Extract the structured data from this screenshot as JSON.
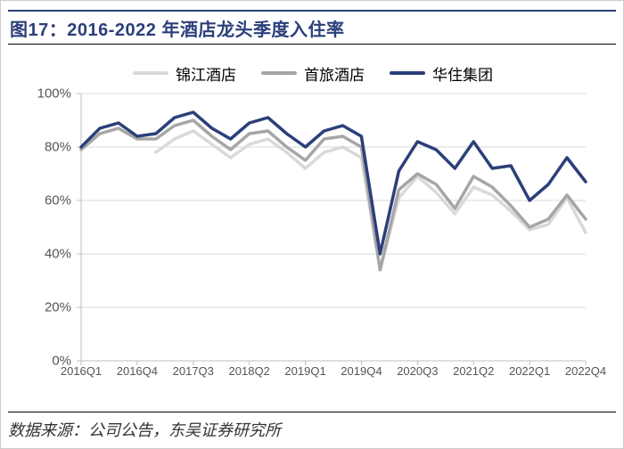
{
  "title": "图17：2016-2022 年酒店龙头季度入住率",
  "source": "数据来源：公司公告，东吴证券研究所",
  "chart": {
    "type": "line",
    "background_color": "#ffffff",
    "grid_color": "#d9d9d9",
    "axis_color": "#bfbfbf",
    "tick_color": "#bfbfbf",
    "axis_font_color": "#595959",
    "font_family": "Arial, sans-serif",
    "axis_fontsize": 14,
    "legend_fontsize": 17,
    "line_width": 3.5,
    "ylim": [
      0,
      100
    ],
    "ytick_step": 20,
    "y_label_suffix": "%",
    "x_categories": [
      "2016Q1",
      "2016Q2",
      "2016Q3",
      "2016Q4",
      "2017Q1",
      "2017Q2",
      "2017Q3",
      "2017Q4",
      "2018Q1",
      "2018Q2",
      "2018Q3",
      "2018Q4",
      "2019Q1",
      "2019Q2",
      "2019Q3",
      "2019Q4",
      "2020Q1",
      "2020Q2",
      "2020Q3",
      "2020Q4",
      "2021Q1",
      "2021Q2",
      "2021Q3",
      "2021Q4",
      "2022Q1",
      "2022Q2",
      "2022Q3",
      "2022Q4"
    ],
    "x_tick_labels": [
      "2016Q1",
      "2016Q4",
      "2017Q3",
      "2018Q2",
      "2019Q1",
      "2019Q4",
      "2020Q3",
      "2021Q2",
      "2022Q1",
      "2022Q4"
    ],
    "x_tick_indices": [
      0,
      3,
      6,
      9,
      12,
      15,
      18,
      21,
      24,
      27
    ],
    "series": [
      {
        "name": "锦江酒店",
        "color": "#d9d9d9",
        "values": [
          null,
          null,
          null,
          null,
          78,
          83,
          86,
          81,
          76,
          81,
          83,
          78,
          72,
          78,
          80,
          76,
          34,
          61,
          69,
          63,
          55,
          65,
          62,
          56,
          49,
          51,
          61,
          48
        ]
      },
      {
        "name": "首旅酒店",
        "color": "#a6a6a6",
        "values": [
          79,
          85,
          87,
          83,
          83,
          88,
          90,
          84,
          79,
          85,
          86,
          80,
          75,
          83,
          84,
          80,
          34,
          64,
          70,
          66,
          57,
          69,
          65,
          58,
          50,
          53,
          62,
          53
        ]
      },
      {
        "name": "华住集团",
        "color": "#2b3f7a",
        "values": [
          80,
          87,
          89,
          84,
          85,
          91,
          93,
          87,
          83,
          89,
          91,
          85,
          80,
          86,
          88,
          84,
          40,
          71,
          82,
          79,
          72,
          82,
          72,
          73,
          60,
          66,
          76,
          67
        ]
      }
    ]
  }
}
